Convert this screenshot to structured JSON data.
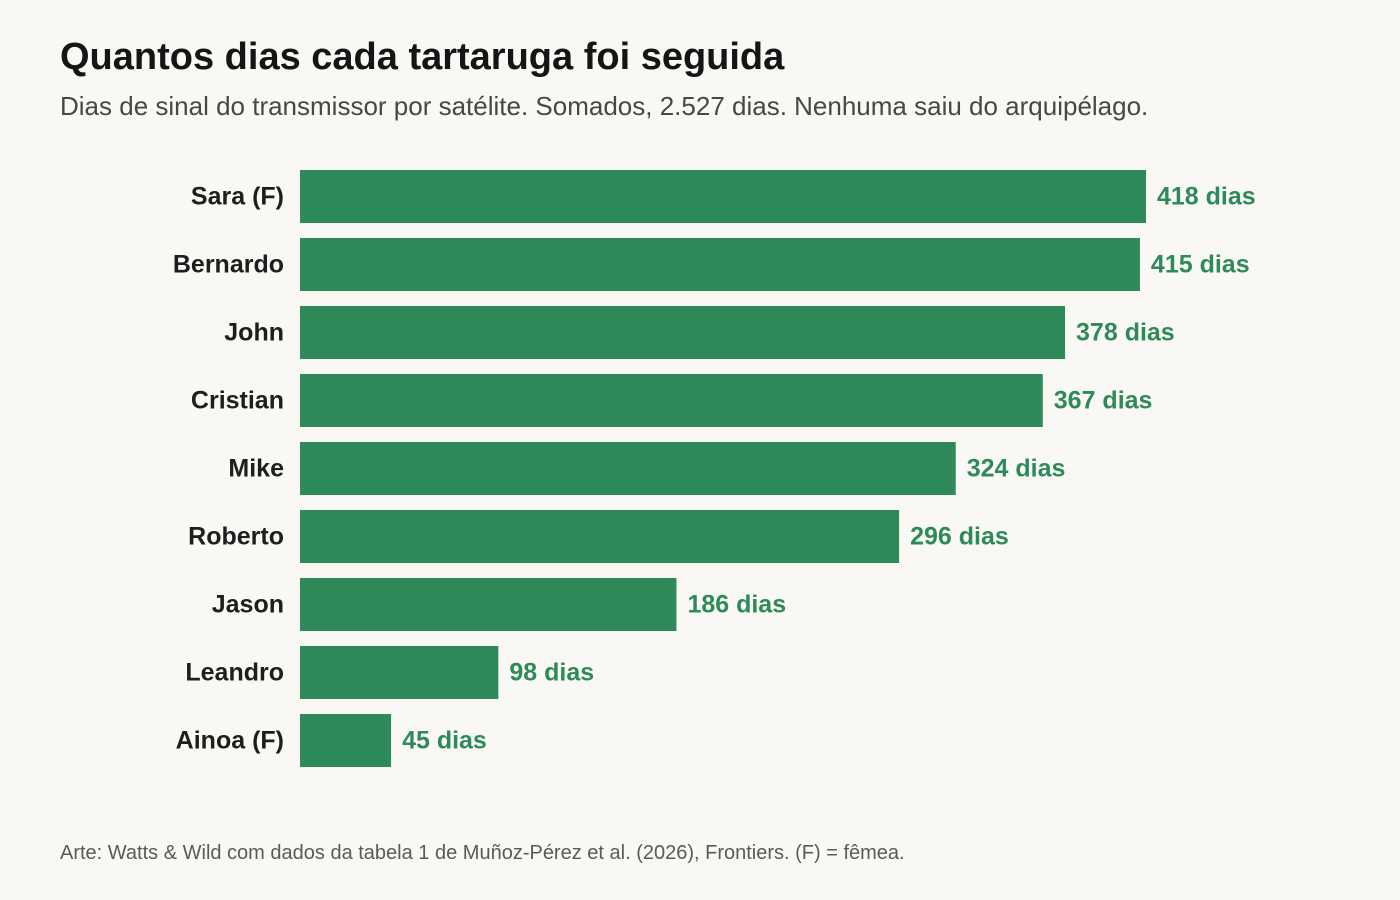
{
  "header": {
    "title": "Quantos dias cada tartaruga foi seguida",
    "subtitle": "Dias de sinal do transmissor por satélite. Somados, 2.527 dias. Nenhuma saiu do arquipélago."
  },
  "footer": {
    "source": "Arte: Watts & Wild com dados da tabela 1 de Muñoz-Pérez et al. (2026), Frontiers. (F) = fêmea."
  },
  "colors": {
    "bar": "#2e8b59",
    "value_label": "#2e8b59"
  },
  "chart_data": {
    "type": "bar",
    "orientation": "horizontal",
    "categories": [
      "Sara (F)",
      "Bernardo",
      "John",
      "Cristian",
      "Mike",
      "Roberto",
      "Jason",
      "Leandro",
      "Ainoa (F)"
    ],
    "values": [
      418,
      415,
      378,
      367,
      324,
      296,
      186,
      98,
      45
    ],
    "value_labels": [
      "418 dias",
      "415 dias",
      "378 dias",
      "367 dias",
      "324 dias",
      "296 dias",
      "186 dias",
      "98 dias",
      "45 dias"
    ],
    "xlim": [
      0,
      418
    ],
    "grid": false,
    "legend": "none"
  }
}
